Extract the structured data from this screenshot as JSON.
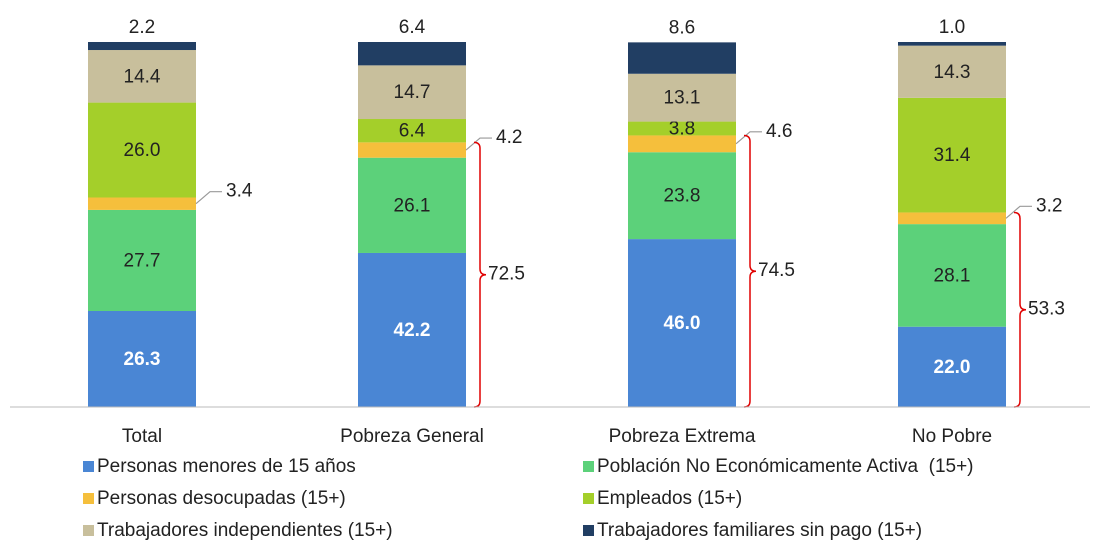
{
  "chart_data": {
    "type": "stacked_bar",
    "categories": [
      "Total",
      "Pobreza General",
      "Pobreza Extrema",
      "No Pobre"
    ],
    "series": [
      {
        "name": "Personas menores de 15 años",
        "color": "#4a86d4",
        "values": [
          26.3,
          42.2,
          46.0,
          22.0
        ],
        "value_labels": [
          "26.3",
          "42.2",
          "46.0",
          "22.0"
        ]
      },
      {
        "name": "Población No Económicamente Activa  (15+)",
        "color": "#5cd17a",
        "values": [
          27.7,
          26.1,
          23.8,
          28.1
        ]
      },
      {
        "name": "Personas desocupadas (15+)",
        "color": "#f5bf3c",
        "values": [
          3.4,
          4.2,
          4.6,
          3.2
        ]
      },
      {
        "name": "Empleados (15+)",
        "color": "#a4cf2a",
        "values": [
          26.0,
          6.4,
          3.8,
          31.4
        ],
        "value_labels": [
          "26.0",
          "6.4",
          "3.8",
          "31.4"
        ]
      },
      {
        "name": "Trabajadores independientes (15+)",
        "color": "#c8bf9c",
        "values": [
          14.4,
          14.7,
          13.1,
          14.3
        ]
      },
      {
        "name": "Trabajadores familiares sin pago (15+)",
        "color": "#213e63",
        "values": [
          2.2,
          6.4,
          8.6,
          1.0
        ],
        "value_labels": [
          "2.2",
          "6.4",
          "8.6",
          "1.0"
        ]
      }
    ],
    "bracket_totals": [
      null,
      72.5,
      74.5,
      53.3
    ],
    "bracket_color": "#e00000",
    "ylim": [
      0,
      100
    ]
  }
}
